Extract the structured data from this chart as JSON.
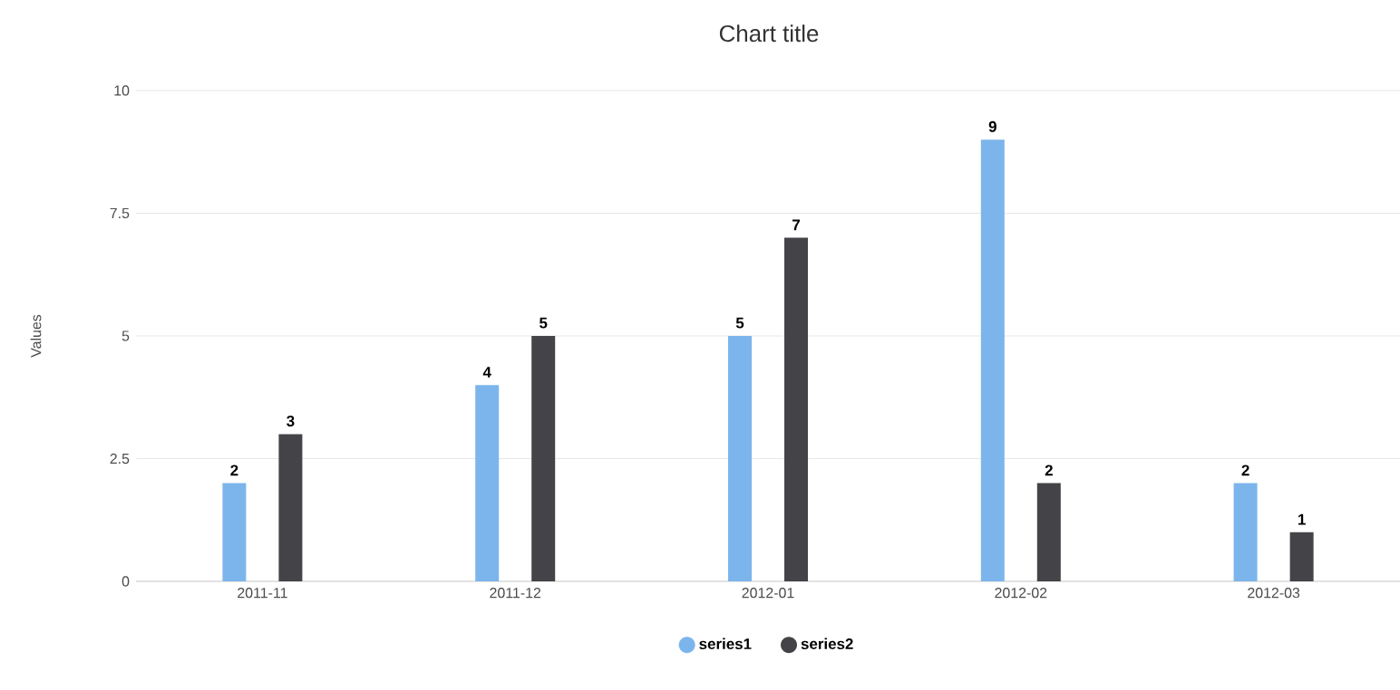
{
  "chart_data": {
    "type": "bar",
    "title": "Chart title",
    "ylabel": "Values",
    "categories": [
      "2011-11",
      "2011-12",
      "2012-01",
      "2012-02",
      "2012-03"
    ],
    "series": [
      {
        "name": "series1",
        "color": "#7cb5ec",
        "values": [
          2,
          4,
          5,
          9,
          2
        ]
      },
      {
        "name": "series2",
        "color": "#434348",
        "values": [
          3,
          5,
          7,
          2,
          1
        ]
      }
    ],
    "ylim": [
      0,
      10
    ],
    "yticks": [
      0,
      2.5,
      5,
      7.5,
      10
    ],
    "grid": "y",
    "legend": "bottom",
    "data_labels": true
  }
}
